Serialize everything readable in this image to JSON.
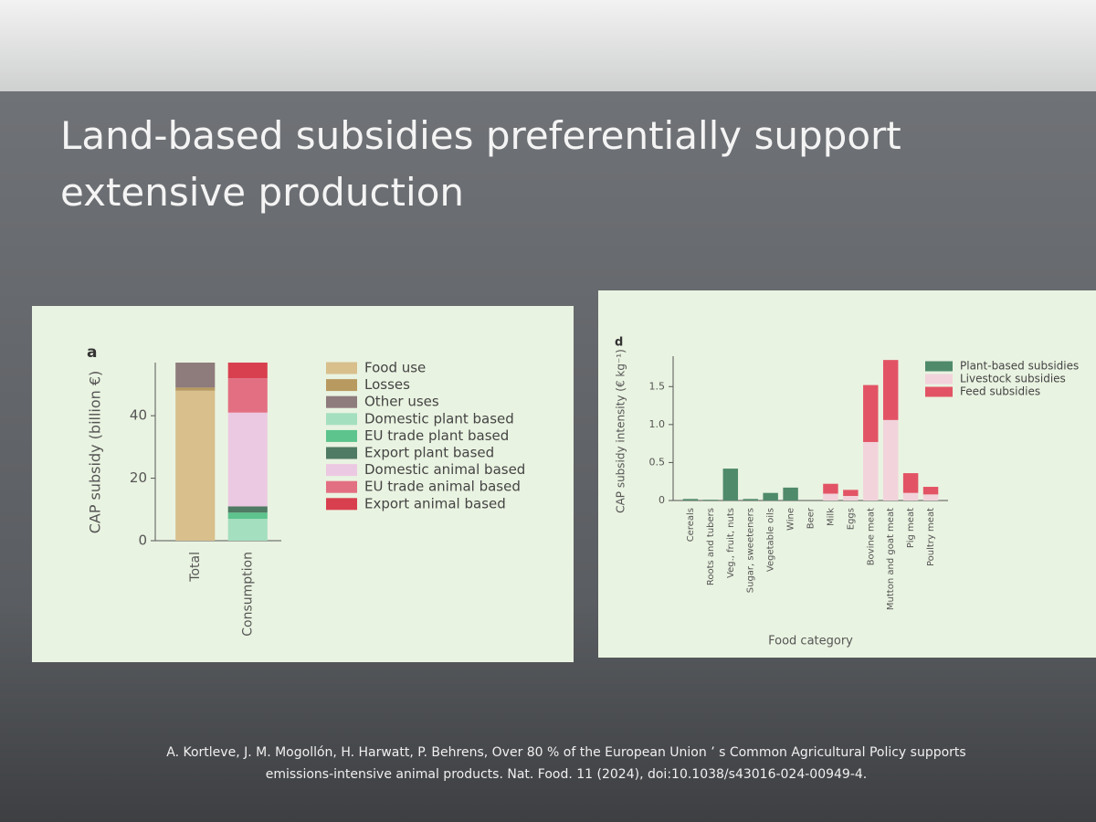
{
  "slide_title": "Land-based subsidies preferentially support extensive production",
  "citation": [
    "A. Kortleve, J. M. Mogollón, H. Harwatt, P. Behrens, Over 80 % of the European Union ’ s Common Agricultural Policy supports",
    "emissions-intensive animal products. Nat. Food. 11 (2024), doi:10.1038/s43016-024-00949-4."
  ],
  "chart_data": [
    {
      "type": "bar",
      "stacked": true,
      "panel_label": "a",
      "ylabel": "CAP subsidy (billion €)",
      "categories": [
        "Total",
        "Consumption"
      ],
      "series": [
        {
          "name": "Food use",
          "color": "#d8bf8c",
          "values": [
            48,
            null
          ]
        },
        {
          "name": "Losses",
          "color": "#b89a60",
          "values": [
            1,
            null
          ]
        },
        {
          "name": "Other uses",
          "color": "#8e7b7c",
          "values": [
            8,
            null
          ]
        },
        {
          "name": "Domestic plant based",
          "color": "#a4dfbf",
          "values": [
            null,
            7
          ]
        },
        {
          "name": "EU trade plant based",
          "color": "#5cc48c",
          "values": [
            null,
            2
          ]
        },
        {
          "name": "Export plant based",
          "color": "#4f7a63",
          "values": [
            null,
            2
          ]
        },
        {
          "name": "Domestic animal based",
          "color": "#ecc9e2",
          "values": [
            null,
            30
          ]
        },
        {
          "name": "EU trade animal based",
          "color": "#e36f82",
          "values": [
            null,
            11
          ]
        },
        {
          "name": "Export animal based",
          "color": "#d8404f",
          "values": [
            null,
            5
          ]
        }
      ],
      "ylim": [
        0,
        57
      ],
      "yticks": [
        0,
        20,
        40
      ]
    },
    {
      "type": "bar",
      "stacked": true,
      "panel_label": "d",
      "ylabel": "CAP subsidy intensity (€ kg⁻¹)",
      "xlabel": "Food category",
      "categories": [
        "Cereals",
        "Roots and tubers",
        "Veg., fruit, nuts",
        "Sugar, sweeteners",
        "Vegetable oils",
        "Wine",
        "Beer",
        "Milk",
        "Eggs",
        "Bovine meat",
        "Mutton and goat meat",
        "Pig meat",
        "Poultry meat"
      ],
      "series": [
        {
          "name": "Plant-based subsidies",
          "color": "#4f8a6b",
          "values": [
            0.02,
            0.01,
            0.42,
            0.02,
            0.1,
            0.17,
            null,
            null,
            null,
            null,
            null,
            null,
            null
          ]
        },
        {
          "name": "Livestock subsidies",
          "color": "#f2d3db",
          "values": [
            null,
            null,
            null,
            null,
            null,
            null,
            null,
            0.09,
            0.06,
            0.77,
            1.06,
            0.1,
            0.08
          ]
        },
        {
          "name": "Feed subsidies",
          "color": "#e25465",
          "values": [
            null,
            null,
            null,
            null,
            null,
            null,
            null,
            0.13,
            0.08,
            0.75,
            0.79,
            0.26,
            0.1
          ]
        }
      ],
      "ylim": [
        0,
        1.9
      ],
      "yticks": [
        0,
        0.5,
        {
          "value": 1,
          "label": "1.0"
        },
        1.5
      ]
    }
  ]
}
